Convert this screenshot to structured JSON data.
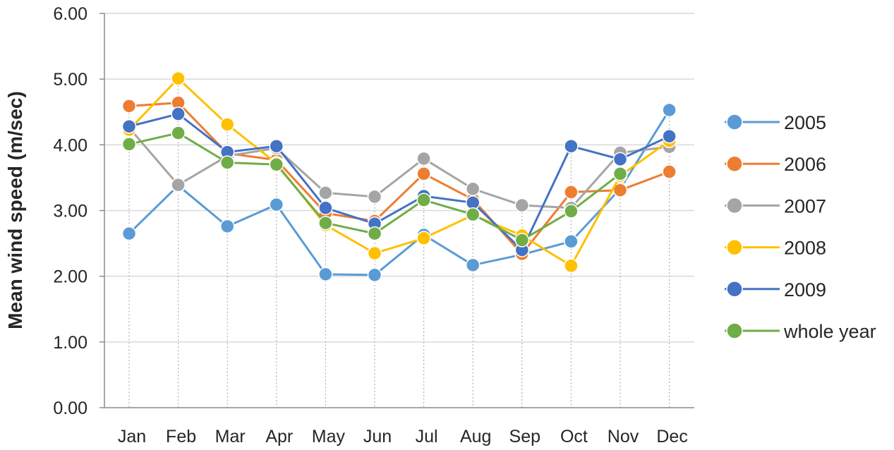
{
  "chart_data": {
    "type": "line",
    "title": "",
    "xlabel": "",
    "ylabel": "Mean wind speed (m/sec)",
    "ylim": [
      0,
      6
    ],
    "yticks": [
      "0.00",
      "1.00",
      "2.00",
      "3.00",
      "4.00",
      "5.00",
      "6.00"
    ],
    "categories": [
      "Jan",
      "Feb",
      "Mar",
      "Apr",
      "May",
      "Jun",
      "Jul",
      "Aug",
      "Sep",
      "Oct",
      "Nov",
      "Dec"
    ],
    "grid": "horizontal",
    "legend_position": "right",
    "series": [
      {
        "name": "2005",
        "color": "#5b9bd5",
        "values": [
          2.65,
          3.38,
          2.76,
          3.09,
          2.03,
          2.02,
          2.63,
          2.17,
          2.33,
          2.53,
          3.33,
          4.53
        ]
      },
      {
        "name": "2006",
        "color": "#ed7d31",
        "values": [
          4.59,
          4.64,
          3.87,
          3.77,
          2.96,
          2.84,
          3.56,
          3.17,
          2.34,
          3.28,
          3.31,
          3.59
        ]
      },
      {
        "name": "2007",
        "color": "#a5a5a5",
        "values": [
          4.26,
          3.39,
          3.83,
          3.95,
          3.27,
          3.21,
          3.79,
          3.33,
          3.08,
          3.04,
          3.88,
          3.97
        ]
      },
      {
        "name": "2008",
        "color": "#ffc000",
        "values": [
          4.23,
          5.01,
          4.31,
          3.72,
          2.78,
          2.35,
          2.58,
          2.93,
          2.62,
          2.16,
          3.53,
          4.06
        ]
      },
      {
        "name": "2009",
        "color": "#4472c4",
        "values": [
          4.28,
          4.47,
          3.89,
          3.98,
          3.04,
          2.8,
          3.22,
          3.12,
          2.4,
          3.98,
          3.78,
          4.13
        ]
      },
      {
        "name": "whole year",
        "color": "#70ad47",
        "values": [
          4.01,
          4.18,
          3.73,
          3.7,
          2.81,
          2.65,
          3.16,
          2.94,
          2.55,
          2.99,
          3.56,
          null
        ]
      }
    ]
  }
}
